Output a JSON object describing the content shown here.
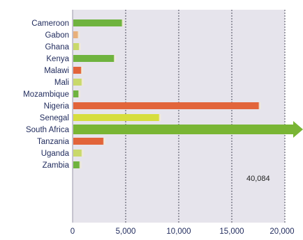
{
  "chart_data": {
    "type": "bar",
    "orientation": "horizontal",
    "categories": [
      "Cameroon",
      "Gabon",
      "Ghana",
      "Kenya",
      "Malawi",
      "Mali",
      "Mozambique",
      "Nigeria",
      "Senegal",
      "South Africa",
      "Tanzania",
      "Uganda",
      "Zambia"
    ],
    "values": [
      4700,
      550,
      650,
      3950,
      850,
      900,
      600,
      17600,
      8200,
      40084,
      2950,
      900,
      700
    ],
    "colors": [
      "#6fb33f",
      "#e8b07a",
      "#c9d96b",
      "#6fb33f",
      "#e2643a",
      "#c9d96b",
      "#6fb33f",
      "#e2643a",
      "#d6de3e",
      "#79b534",
      "#e2643a",
      "#c9d96b",
      "#6fb33f"
    ],
    "axis_max_shown": 20000,
    "x_ticks": [
      0,
      5000,
      10000,
      15000,
      20000
    ],
    "x_tick_labels": [
      "0",
      "5,000",
      "10,000",
      "15,000",
      "20,000"
    ],
    "overflow_bar": {
      "category": "South Africa",
      "label": "40,084"
    },
    "grid": {
      "vertical": true,
      "style": "dashed"
    },
    "plot_background": "#e6e4ec",
    "title": "",
    "xlabel": "",
    "ylabel": ""
  }
}
